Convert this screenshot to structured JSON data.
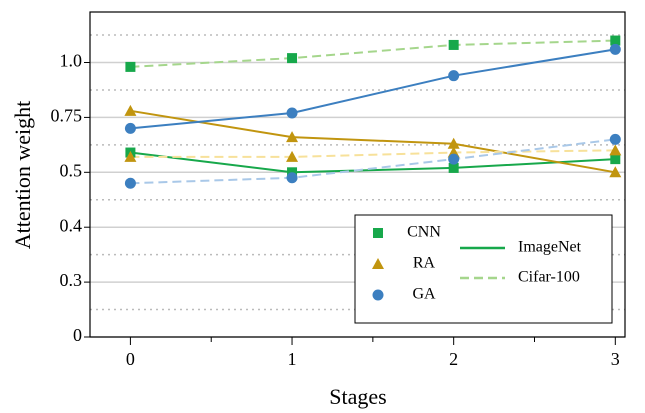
{
  "chart_data": {
    "type": "line",
    "x_label": "Stages",
    "y_label": "Attention weight",
    "x": [
      0,
      1,
      2,
      3
    ],
    "xlim": [
      -0.25,
      3.06
    ],
    "xticks": [
      0,
      1,
      2,
      3
    ],
    "ylim": [
      0,
      1.23
    ],
    "yticks": [
      0,
      0.3,
      0.4,
      0.5,
      0.75,
      {
        "value": 1,
        "label": "1.0"
      }
    ],
    "grid": true,
    "datasets": [
      {
        "name": "ImageNet",
        "dash": "solid"
      },
      {
        "name": "Cifar-100",
        "dash": "dashed"
      }
    ],
    "series": [
      {
        "name": "CNN",
        "marker": "square",
        "colors": [
          "#17a84b",
          "#a5d68c"
        ],
        "values": [
          [
            0.59,
            0.5,
            0.52,
            0.56
          ],
          [
            0.98,
            1.02,
            1.08,
            1.1
          ]
        ]
      },
      {
        "name": "RA",
        "marker": "triangle",
        "colors": [
          "#c1950f",
          "#f7e19a"
        ],
        "values": [
          [
            0.78,
            0.66,
            0.63,
            0.5
          ],
          [
            0.57,
            0.57,
            0.59,
            0.6
          ]
        ]
      },
      {
        "name": "GA",
        "marker": "circle",
        "colors": [
          "#3c7fc0",
          "#a9c8e8"
        ],
        "values": [
          [
            0.7,
            0.77,
            0.94,
            1.06
          ],
          [
            0.48,
            0.49,
            0.56,
            0.65
          ]
        ]
      }
    ]
  }
}
